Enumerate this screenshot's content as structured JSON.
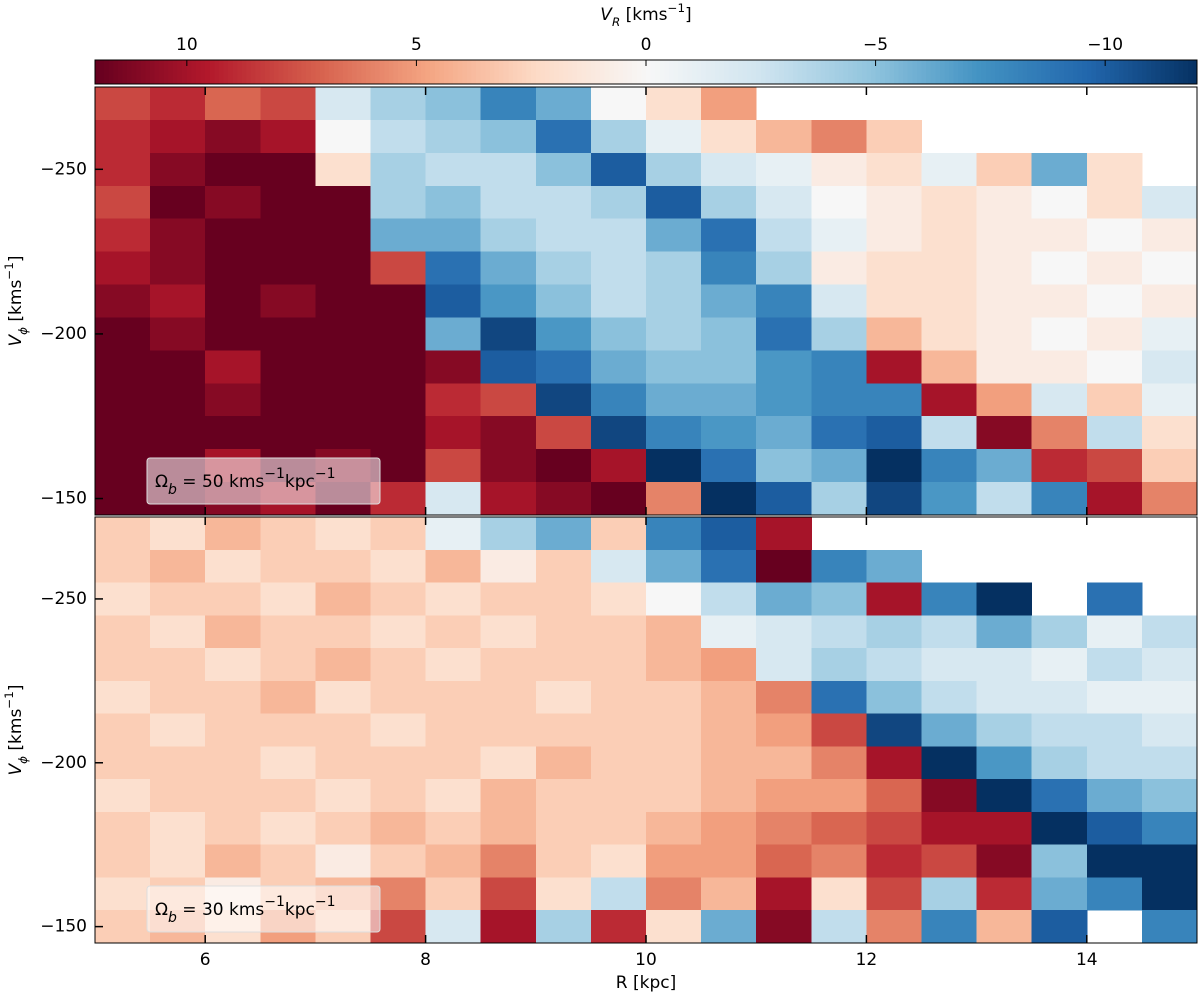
{
  "colorbar": {
    "label": [
      {
        "text": "V"
      },
      {
        "text": "R",
        "sub": true
      },
      {
        "text": " [kms"
      },
      {
        "text": "−1",
        "sup": true
      },
      {
        "text": "]"
      }
    ],
    "clim": [
      12,
      -12
    ],
    "ticks": [
      10,
      5,
      0,
      {
        "value": -5,
        "label": "−5"
      },
      {
        "value": -10,
        "label": "−10"
      }
    ],
    "colormap": [
      "#67001f",
      "#b2182b",
      "#d6604d",
      "#f4a582",
      "#fddbc7",
      "#f7f7f7",
      "#d1e5f0",
      "#92c5de",
      "#4393c3",
      "#2166ac",
      "#053061"
    ]
  },
  "chart_data": [
    {
      "type": "heatmap",
      "ylabel": [
        {
          "text": "V"
        },
        {
          "text": "ϕ",
          "sub": true
        },
        {
          "text": " [kms"
        },
        {
          "text": "−1",
          "sup": true
        },
        {
          "text": "]"
        }
      ],
      "annotation": [
        {
          "text": "Ω"
        },
        {
          "text": "b",
          "sub": true
        },
        {
          "text": " = 50 kms"
        },
        {
          "text": "−1",
          "sup": true
        },
        {
          "text": "kpc"
        },
        {
          "text": "−1",
          "sup": true
        }
      ],
      "xlim": [
        5,
        15
      ],
      "ylim": [
        -275,
        -145
      ],
      "xticks": [
        6,
        8,
        10,
        12,
        14
      ],
      "yticks": [
        {
          "value": -250,
          "label": "−250"
        },
        {
          "value": -200,
          "label": "−200"
        },
        {
          "value": -150,
          "label": "−150"
        }
      ],
      "xbins": [
        5,
        5.5,
        6,
        6.5,
        7,
        7.5,
        8,
        8.5,
        9,
        9.5,
        10,
        10.5,
        11,
        11.5,
        12,
        12.5,
        13,
        13.5,
        14,
        14.5,
        15
      ],
      "ybins": [
        -275,
        -265,
        -255,
        -245,
        -235,
        -225,
        -215,
        -205,
        -195,
        -185,
        -175,
        -165,
        -155,
        -145
      ],
      "values": [
        [
          8,
          9,
          7,
          8,
          -2,
          -4,
          -5,
          -8,
          -6,
          0,
          2,
          5,
          null,
          null,
          null,
          null,
          null,
          null,
          null,
          null
        ],
        [
          9,
          10,
          11,
          10,
          0,
          -3,
          -4,
          -5,
          -9,
          -4,
          -1,
          2,
          4,
          6,
          3,
          null,
          null,
          null,
          null,
          null
        ],
        [
          9,
          11,
          12,
          12,
          2,
          -4,
          -3,
          -3,
          -5,
          -10,
          -4,
          -2,
          -1,
          1,
          2,
          -1,
          3,
          -6,
          2,
          null
        ],
        [
          8,
          12,
          11,
          12,
          12,
          -4,
          -5,
          -3,
          -3,
          -4,
          -10,
          -4,
          -2,
          0,
          1,
          2,
          1,
          0,
          2,
          -2
        ],
        [
          9,
          11,
          12,
          12,
          12,
          -6,
          -6,
          -4,
          -3,
          -3,
          -6,
          -9,
          -3,
          -1,
          1,
          2,
          1,
          1,
          0,
          1
        ],
        [
          10,
          11,
          12,
          12,
          12,
          8,
          -9,
          -6,
          -4,
          -3,
          -4,
          -8,
          -4,
          1,
          2,
          2,
          1,
          0,
          1,
          0
        ],
        [
          11,
          10,
          12,
          11,
          12,
          12,
          -10,
          -7,
          -5,
          -3,
          -4,
          -6,
          -8,
          -2,
          2,
          2,
          1,
          1,
          0,
          1
        ],
        [
          12,
          11,
          12,
          12,
          12,
          12,
          -6,
          -11,
          -7,
          -5,
          -4,
          -5,
          -9,
          -4,
          4,
          2,
          1,
          0,
          1,
          -1
        ],
        [
          12,
          12,
          10,
          12,
          12,
          12,
          11,
          -10,
          -9,
          -6,
          -5,
          -5,
          -7,
          -8,
          10,
          4,
          1,
          1,
          0,
          -2
        ],
        [
          12,
          12,
          11,
          12,
          12,
          12,
          9,
          8,
          -11,
          -8,
          -6,
          -6,
          -7,
          -8,
          -8,
          10,
          5,
          -2,
          3,
          -1
        ],
        [
          12,
          12,
          12,
          12,
          12,
          12,
          10,
          11,
          8,
          -11,
          -8,
          -7,
          -6,
          -9,
          -10,
          -3,
          11,
          6,
          -3,
          2
        ],
        [
          12,
          12,
          10,
          12,
          11,
          12,
          8,
          11,
          12,
          10,
          -12,
          -9,
          -5,
          -6,
          -12,
          -8,
          -6,
          9,
          8,
          3
        ],
        [
          12,
          12,
          11,
          10,
          12,
          9,
          -2,
          10,
          11,
          12,
          6,
          -12,
          -10,
          -4,
          -11,
          -7,
          -3,
          -8,
          10,
          6
        ]
      ]
    },
    {
      "type": "heatmap",
      "xlabel": "R [kpc]",
      "ylabel": [
        {
          "text": "V"
        },
        {
          "text": "ϕ",
          "sub": true
        },
        {
          "text": " [kms"
        },
        {
          "text": "−1",
          "sup": true
        },
        {
          "text": "]"
        }
      ],
      "annotation": [
        {
          "text": "Ω"
        },
        {
          "text": "b",
          "sub": true
        },
        {
          "text": " = 30 kms"
        },
        {
          "text": "−1",
          "sup": true
        },
        {
          "text": "kpc"
        },
        {
          "text": "−1",
          "sup": true
        }
      ],
      "xlim": [
        5,
        15
      ],
      "ylim": [
        -275,
        -145
      ],
      "xticks": [
        6,
        8,
        10,
        12,
        14
      ],
      "yticks": [
        {
          "value": -250,
          "label": "−250"
        },
        {
          "value": -200,
          "label": "−200"
        },
        {
          "value": -150,
          "label": "−150"
        }
      ],
      "xbins": [
        5,
        5.5,
        6,
        6.5,
        7,
        7.5,
        8,
        8.5,
        9,
        9.5,
        10,
        10.5,
        11,
        11.5,
        12,
        12.5,
        13,
        13.5,
        14,
        14.5,
        15
      ],
      "ybins": [
        -275,
        -265,
        -255,
        -245,
        -235,
        -225,
        -215,
        -205,
        -195,
        -185,
        -175,
        -165,
        -155,
        -145
      ],
      "values": [
        [
          3,
          2,
          4,
          3,
          2,
          3,
          -1,
          -4,
          -6,
          3,
          -8,
          -10,
          10,
          null,
          null,
          null,
          null,
          null,
          null,
          null
        ],
        [
          3,
          4,
          2,
          3,
          3,
          2,
          4,
          1,
          3,
          -2,
          -6,
          -9,
          12,
          -8,
          -6,
          null,
          null,
          null,
          null,
          null
        ],
        [
          2,
          3,
          3,
          2,
          4,
          3,
          2,
          3,
          3,
          2,
          0,
          -3,
          -6,
          -5,
          10,
          -8,
          -12,
          null,
          -9,
          null
        ],
        [
          3,
          2,
          4,
          3,
          3,
          2,
          3,
          2,
          3,
          3,
          4,
          -1,
          -2,
          -3,
          -4,
          -3,
          -6,
          -4,
          -1,
          -3
        ],
        [
          3,
          3,
          2,
          3,
          4,
          3,
          2,
          3,
          3,
          3,
          4,
          5,
          -2,
          -4,
          -3,
          -2,
          -2,
          -1,
          -3,
          -2
        ],
        [
          2,
          3,
          3,
          4,
          2,
          3,
          3,
          3,
          2,
          3,
          3,
          4,
          6,
          -9,
          -5,
          -3,
          -2,
          -2,
          -1,
          -1
        ],
        [
          3,
          2,
          3,
          3,
          3,
          2,
          3,
          3,
          3,
          3,
          3,
          4,
          5,
          8,
          -11,
          -6,
          -4,
          -3,
          -3,
          -2
        ],
        [
          3,
          3,
          3,
          2,
          3,
          3,
          3,
          2,
          4,
          3,
          3,
          4,
          4,
          6,
          10,
          -12,
          -7,
          -4,
          -3,
          -3
        ],
        [
          2,
          3,
          3,
          3,
          2,
          3,
          2,
          4,
          3,
          3,
          3,
          4,
          5,
          5,
          7,
          11,
          -12,
          -9,
          -6,
          -5
        ],
        [
          3,
          2,
          3,
          2,
          3,
          4,
          3,
          4,
          3,
          3,
          4,
          5,
          6,
          7,
          8,
          10,
          10,
          -12,
          -10,
          -8
        ],
        [
          3,
          2,
          4,
          3,
          1,
          3,
          4,
          6,
          3,
          2,
          5,
          5,
          7,
          6,
          9,
          8,
          11,
          -5,
          -12,
          -12
        ],
        [
          2,
          3,
          1,
          3,
          4,
          6,
          3,
          8,
          2,
          -3,
          6,
          4,
          10,
          2,
          8,
          -4,
          9,
          -6,
          -8,
          -12
        ],
        [
          3,
          4,
          2,
          5,
          3,
          8,
          -2,
          10,
          -4,
          9,
          2,
          -6,
          11,
          -3,
          6,
          -8,
          4,
          -10,
          null,
          -8
        ]
      ]
    }
  ]
}
